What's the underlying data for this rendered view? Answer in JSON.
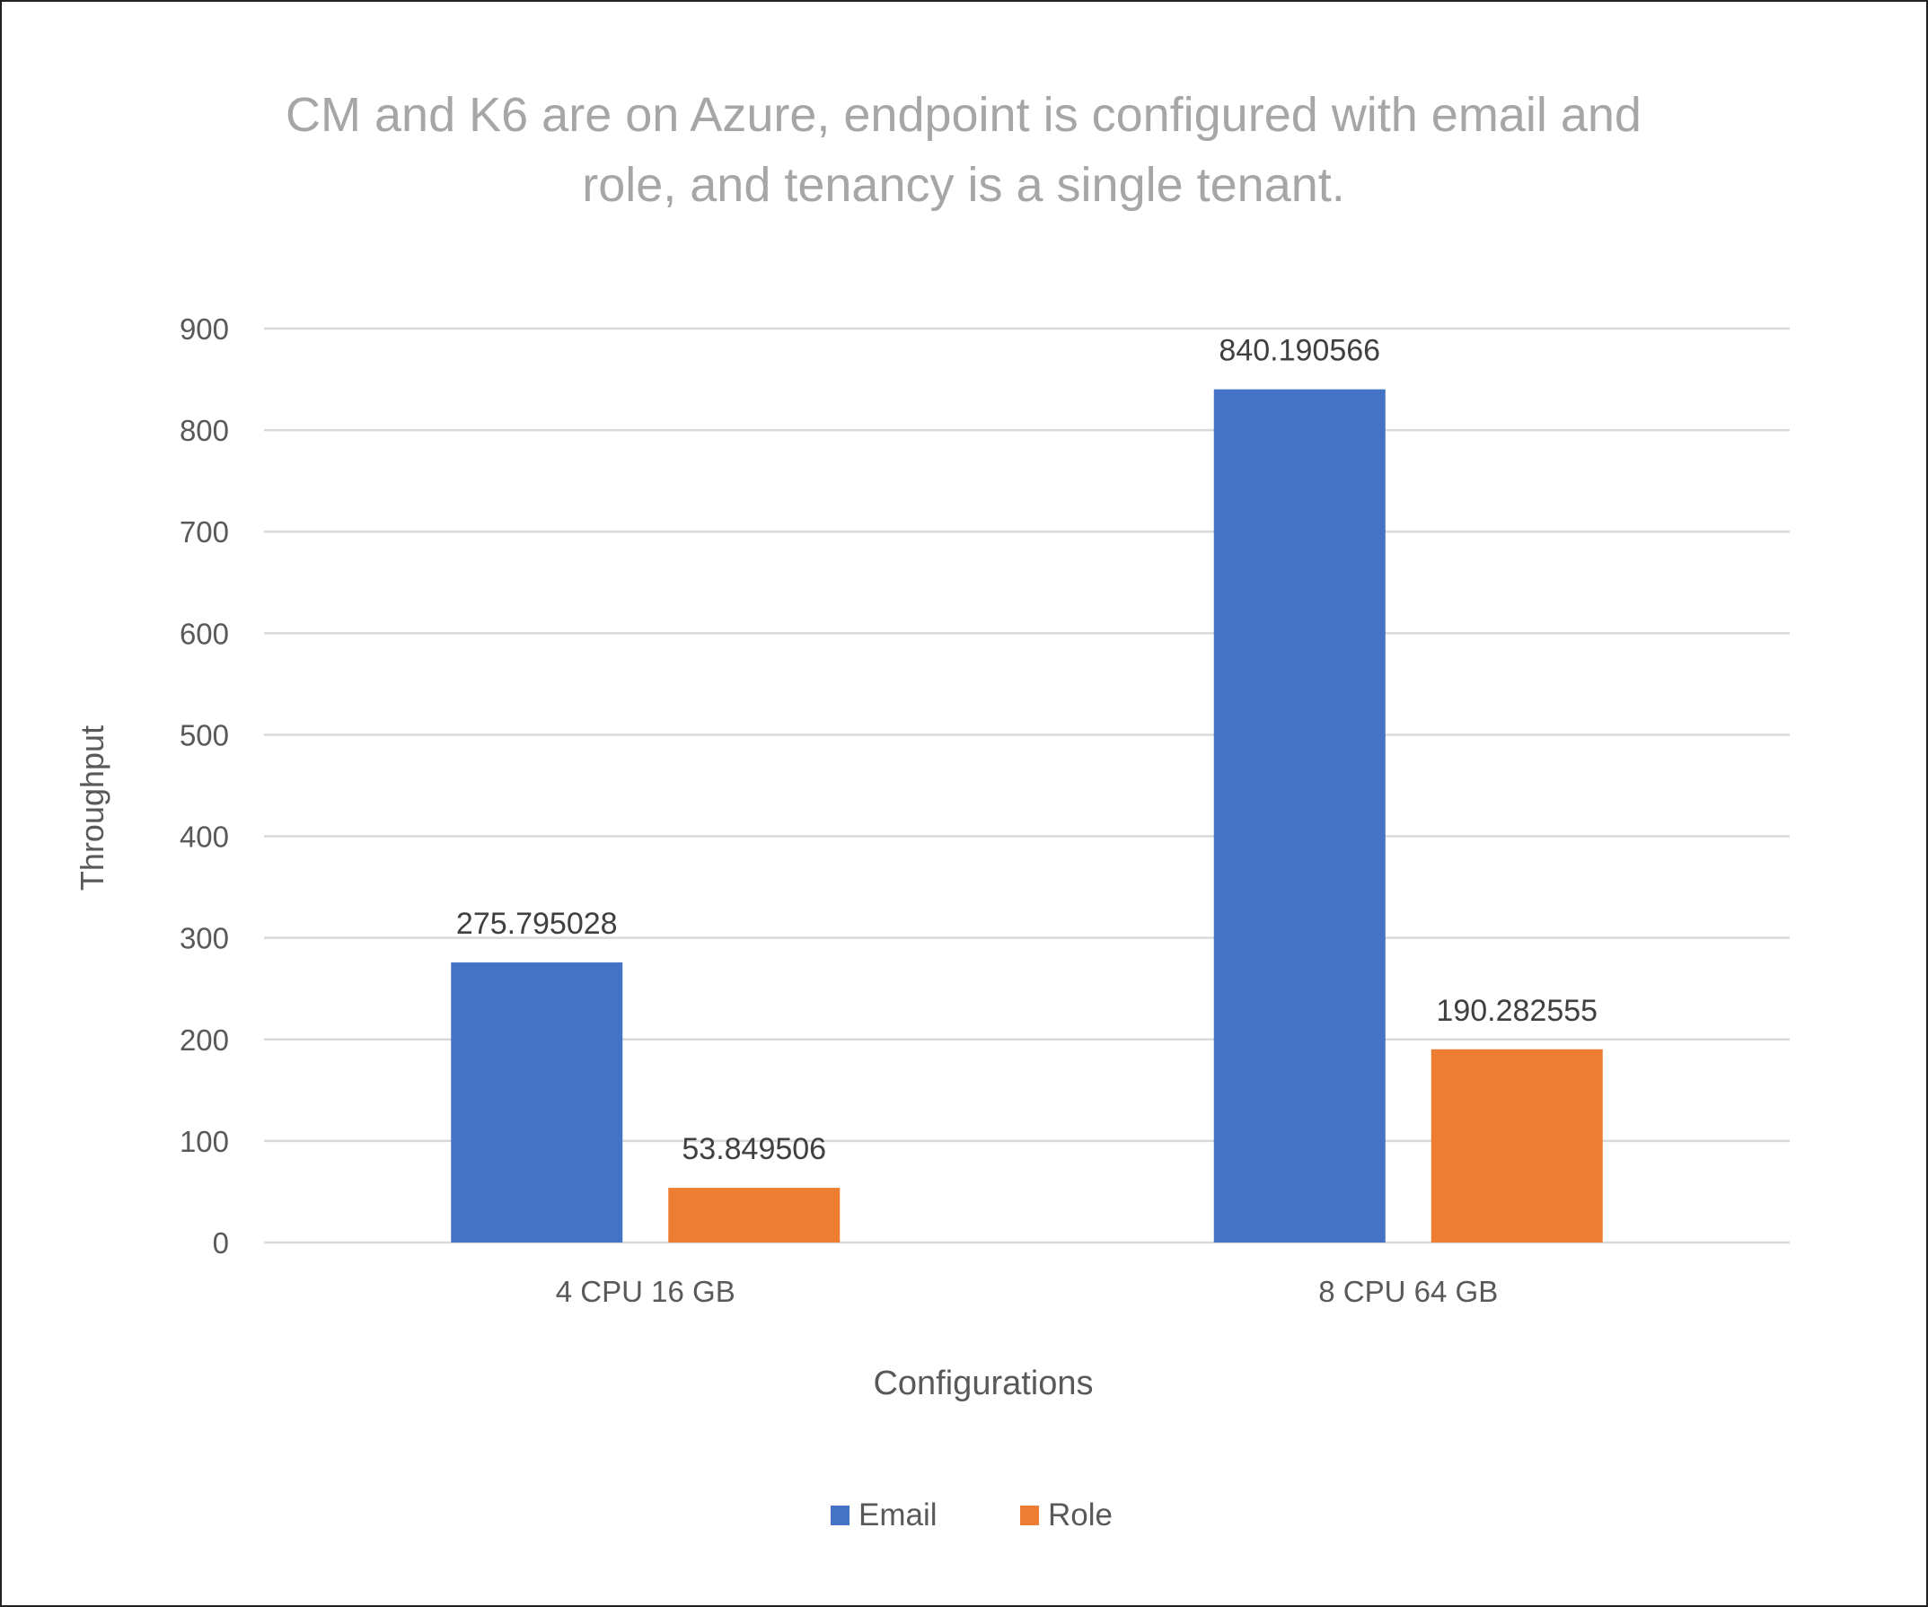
{
  "chart_data": {
    "type": "bar",
    "title_lines": [
      "CM and K6 are on Azure, endpoint is configured with email and",
      "role, and tenancy is a single tenant."
    ],
    "xlabel": "Configurations",
    "ylabel": "Throughput",
    "categories": [
      "4 CPU 16 GB",
      "8 CPU 64 GB"
    ],
    "series": [
      {
        "name": "Email",
        "color": "#4472C4",
        "values": [
          275.795028,
          840.190566
        ],
        "labels": [
          "275.795028",
          "840.190566"
        ]
      },
      {
        "name": "Role",
        "color": "#ED7D31",
        "values": [
          53.849506,
          190.282555
        ],
        "labels": [
          "53.849506",
          "190.282555"
        ]
      }
    ],
    "ylim": [
      0,
      900
    ],
    "yticks": [
      0,
      100,
      200,
      300,
      400,
      500,
      600,
      700,
      800,
      900
    ],
    "grid": true,
    "legend": "bottom",
    "colors": {
      "title": "#A6A6A6",
      "text": "#595959",
      "grid": "#D9D9D9"
    }
  }
}
